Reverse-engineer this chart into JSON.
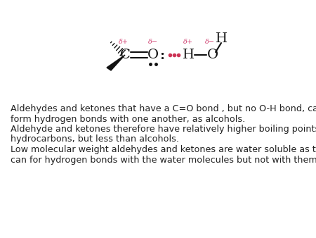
{
  "background_color": "#ffffff",
  "text_lines": [
    "Aldehydes and ketones that have a C=O bond , but no O-H bond, cannot",
    "form hydrogen bonds with one another, as alcohols.",
    "Aldehyde and ketones therefore have relatively higher boiling points than",
    "hydrocarbons, but less than alcohols.",
    "Low molecular weight aldehydes and ketones are water soluble as they",
    "can for hydrogen bonds with the water molecules but not with themselves."
  ],
  "text_fontsize": 9.2,
  "text_color": "#222222",
  "delta_color": "#d04070",
  "hbond_dot_color": "#cc3355",
  "atom_color": "#111111",
  "bond_color": "#111111"
}
